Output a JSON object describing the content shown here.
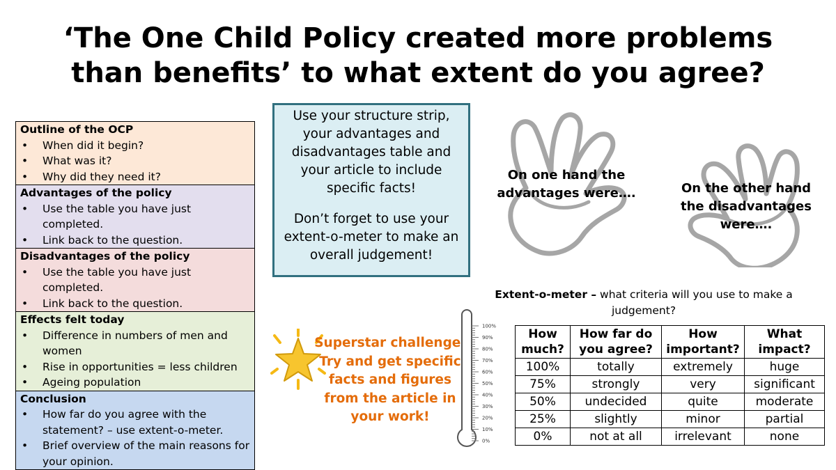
{
  "title": {
    "line1": "‘The One Child Policy created more problems",
    "line2": "than benefits’ to what extent do you agree?"
  },
  "structure_strip": {
    "sections": [
      {
        "heading": "Outline of the OCP",
        "bullets": [
          "When did it begin?",
          "What was it?",
          "Why did they need it?"
        ]
      },
      {
        "heading": "Advantages of the policy",
        "bullets": [
          "Use the table you have just completed.",
          "Link back to the question."
        ]
      },
      {
        "heading": "Disadvantages of the policy",
        "bullets": [
          "Use the table you have just completed.",
          "Link back to the question."
        ]
      },
      {
        "heading": "Effects felt today",
        "bullets": [
          "Difference in numbers of men and women",
          "Rise in opportunities = less children",
          "Ageing population"
        ]
      },
      {
        "heading": "Conclusion",
        "bullets": [
          "How far do you agree with the statement? – use extent-o-meter.",
          "Brief overview of the main reasons for your opinion."
        ]
      }
    ]
  },
  "instruction_box": {
    "para1": "Use your structure strip, your advantages and disadvantages table and your article to include specific facts!",
    "para2": "Don’t forget to use your extent-o-meter to make an overall judgement!"
  },
  "hands": {
    "left_text": "On one hand the advantages were….",
    "right_text": "On the other hand the disadvantages were…."
  },
  "superstar": {
    "text": "Superstar challenge: Try and get specific facts and figures from the article in your work!"
  },
  "extent_o_meter": {
    "label_bold": "Extent-o-meter –",
    "label_rest": " what criteria will you use to make a judgement?",
    "thermometer_ticks": [
      "100%",
      "90%",
      "80%",
      "70%",
      "60%",
      "50%",
      "40%",
      "30%",
      "20%",
      "10%",
      "0%"
    ],
    "headers": [
      "How much?",
      "How far do you agree?",
      "How important?",
      "What impact?"
    ],
    "rows": [
      [
        "100%",
        "totally",
        "extremely",
        "huge"
      ],
      [
        "75%",
        "strongly",
        "very",
        "significant"
      ],
      [
        "50%",
        "undecided",
        "quite",
        "moderate"
      ],
      [
        "25%",
        "slightly",
        "minor",
        "partial"
      ],
      [
        "0%",
        "not at all",
        "irrelevant",
        "none"
      ]
    ]
  },
  "colors": {
    "instruction_border": "#31707f",
    "instruction_fill": "#dbeef3",
    "superstar_text": "#e46c0a",
    "hand_outline": "#a6a6a6"
  }
}
